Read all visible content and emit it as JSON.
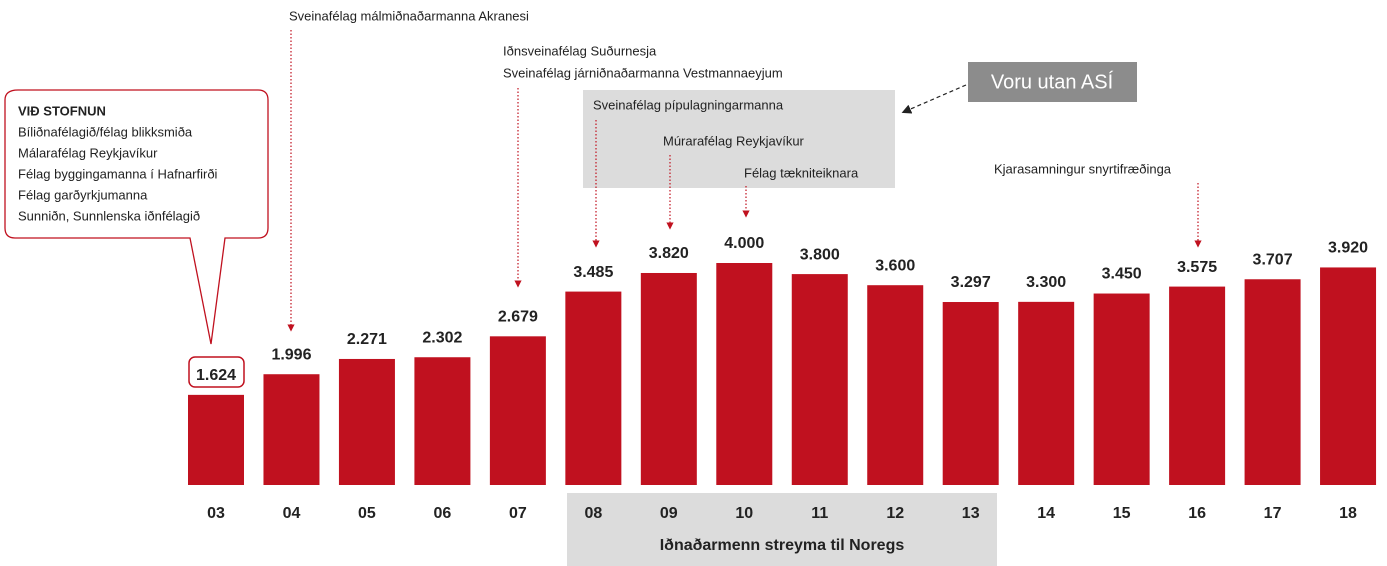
{
  "chart_data": {
    "type": "bar",
    "categories": [
      "03",
      "04",
      "05",
      "06",
      "07",
      "08",
      "09",
      "10",
      "11",
      "12",
      "13",
      "14",
      "15",
      "16",
      "17",
      "18"
    ],
    "values": [
      1624,
      1996,
      2271,
      2302,
      2679,
      3485,
      3820,
      4000,
      3800,
      3600,
      3297,
      3300,
      3450,
      3575,
      3707,
      3920
    ],
    "value_labels": [
      "1.624",
      "1.996",
      "2.271",
      "2.302",
      "2.679",
      "3.485",
      "3.820",
      "4.000",
      "3.800",
      "3.600",
      "3.297",
      "3.300",
      "3.450",
      "3.575",
      "3.707",
      "3.920"
    ],
    "color": "#c0111f",
    "callout": {
      "title": "VIÐ STOFNUN",
      "lines": [
        "Bíliðnafélagið/félag blikksmiða",
        "Málarafélag Reykjavíkur",
        "Félag byggingamanna í Hafnarfirði",
        "Félag garðyrkjumanna",
        "Sunniðn, Sunnlenska iðnfélagið"
      ]
    },
    "annotations": [
      "Sveinafélag málmiðnaðarmanna Akranesi",
      "Iðnsveinafélag Suðurnesja",
      "Sveinafélag járniðnaðarmanna Vestmannaeyjum",
      "Sveinafélag pípulagningarmanna",
      "Múrarafélag Reykjavíkur",
      "Félag tækniteiknara",
      "Kjarasamningur snyrtifræðinga"
    ],
    "note_box": "Voru utan ASÍ",
    "band_label": "Iðnaðarmenn streyma til Noregs"
  }
}
